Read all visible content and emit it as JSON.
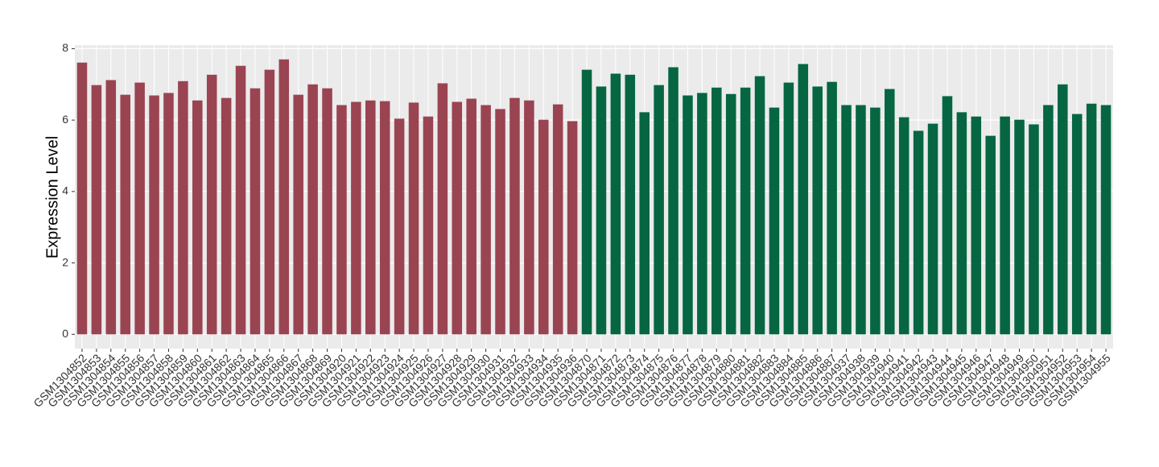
{
  "chart_data": {
    "type": "bar",
    "y_label": "Expression Level",
    "categories": [
      "GSM1304852",
      "GSM1304853",
      "GSM1304854",
      "GSM1304855",
      "GSM1304856",
      "GSM1304857",
      "GSM1304858",
      "GSM1304859",
      "GSM1304860",
      "GSM1304861",
      "GSM1304862",
      "GSM1304863",
      "GSM1304864",
      "GSM1304865",
      "GSM1304866",
      "GSM1304867",
      "GSM1304868",
      "GSM1304869",
      "GSM1304920",
      "GSM1304921",
      "GSM1304922",
      "GSM1304923",
      "GSM1304924",
      "GSM1304925",
      "GSM1304926",
      "GSM1304927",
      "GSM1304928",
      "GSM1304929",
      "GSM1304930",
      "GSM1304931",
      "GSM1304932",
      "GSM1304933",
      "GSM1304934",
      "GSM1304935",
      "GSM1304936",
      "GSM1304870",
      "GSM1304871",
      "GSM1304872",
      "GSM1304873",
      "GSM1304874",
      "GSM1304875",
      "GSM1304876",
      "GSM1304877",
      "GSM1304878",
      "GSM1304879",
      "GSM1304880",
      "GSM1304881",
      "GSM1304882",
      "GSM1304883",
      "GSM1304884",
      "GSM1304885",
      "GSM1304886",
      "GSM1304887",
      "GSM1304937",
      "GSM1304938",
      "GSM1304939",
      "GSM1304940",
      "GSM1304941",
      "GSM1304942",
      "GSM1304943",
      "GSM1304944",
      "GSM1304945",
      "GSM1304946",
      "GSM1304947",
      "GSM1304948",
      "GSM1304949",
      "GSM1304950",
      "GSM1304951",
      "GSM1304952",
      "GSM1304953",
      "GSM1304954",
      "GSM1304955"
    ],
    "values": [
      7.61,
      6.98,
      7.12,
      6.71,
      7.05,
      6.69,
      6.76,
      7.09,
      6.55,
      7.27,
      6.62,
      7.52,
      6.89,
      7.41,
      7.7,
      6.71,
      7.0,
      6.89,
      6.42,
      6.51,
      6.55,
      6.53,
      6.04,
      6.49,
      6.1,
      7.03,
      6.51,
      6.6,
      6.42,
      6.31,
      6.62,
      6.55,
      6.01,
      6.44,
      5.97,
      7.41,
      6.94,
      7.3,
      7.27,
      6.22,
      6.98,
      7.48,
      6.69,
      6.76,
      6.91,
      6.73,
      6.91,
      7.23,
      6.35,
      7.05,
      7.57,
      6.94,
      7.07,
      6.42,
      6.42,
      6.35,
      6.87,
      6.08,
      5.7,
      5.9,
      6.67,
      6.22,
      6.1,
      5.56,
      6.1,
      6.01,
      5.88,
      6.42,
      7.0,
      6.17,
      6.46,
      6.42
    ],
    "colors": [
      "#9a4452",
      "#9a4452",
      "#9a4452",
      "#9a4452",
      "#9a4452",
      "#9a4452",
      "#9a4452",
      "#9a4452",
      "#9a4452",
      "#9a4452",
      "#9a4452",
      "#9a4452",
      "#9a4452",
      "#9a4452",
      "#9a4452",
      "#9a4452",
      "#9a4452",
      "#9a4452",
      "#9a4452",
      "#9a4452",
      "#9a4452",
      "#9a4452",
      "#9a4452",
      "#9a4452",
      "#9a4452",
      "#9a4452",
      "#9a4452",
      "#9a4452",
      "#9a4452",
      "#9a4452",
      "#9a4452",
      "#9a4452",
      "#9a4452",
      "#9a4452",
      "#9a4452",
      "#066642",
      "#066642",
      "#066642",
      "#066642",
      "#066642",
      "#066642",
      "#066642",
      "#066642",
      "#066642",
      "#066642",
      "#066642",
      "#066642",
      "#066642",
      "#066642",
      "#066642",
      "#066642",
      "#066642",
      "#066642",
      "#066642",
      "#066642",
      "#066642",
      "#066642",
      "#066642",
      "#066642",
      "#066642",
      "#066642",
      "#066642",
      "#066642",
      "#066642",
      "#066642",
      "#066642",
      "#066642",
      "#066642",
      "#066642",
      "#066642",
      "#066642",
      "#066642"
    ],
    "ylim": [
      -0.4,
      8.1
    ],
    "yticks": [
      0,
      2,
      4,
      6,
      8
    ],
    "grid": true
  }
}
